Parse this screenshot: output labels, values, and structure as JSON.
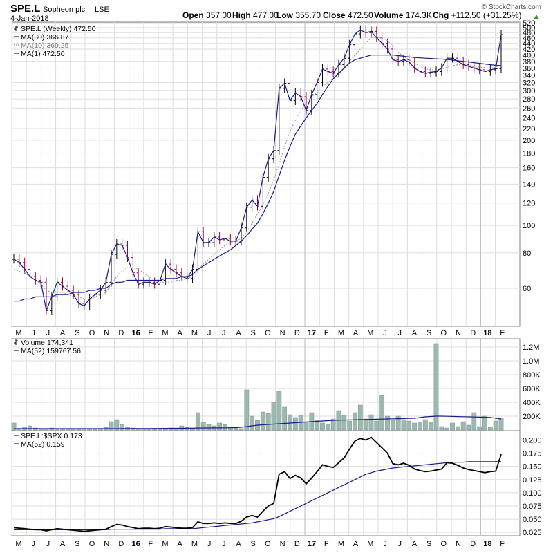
{
  "header": {
    "symbol": "SPE.L",
    "company": "Sopheon plc",
    "exchange": "LSE",
    "date": "4-Jan-2018",
    "brand": "© StockCharts.com",
    "quote": [
      {
        "label": "Open",
        "value": "357.00"
      },
      {
        "label": "High",
        "value": "477.00"
      },
      {
        "label": "Low",
        "value": "355.70"
      },
      {
        "label": "Close",
        "value": "472.50"
      },
      {
        "label": "Volume",
        "value": "174.3K"
      },
      {
        "label": "Chg",
        "value": "+112.50 (+31.25%)"
      }
    ],
    "chg_arrow": "up-triangle-icon",
    "up_color": "#339933"
  },
  "colors": {
    "price_bar": "#000000",
    "price_bar_down": "#990033",
    "ma30": "#1a1a8c",
    "ma10": "#9a9a9a",
    "volume_bar": "#9db8b0",
    "volume_bar_border": "#7a968e",
    "ratio_line": "#000000",
    "ratio_ma": "#1a1a8c",
    "grid": "#dddddd"
  },
  "price_panel": {
    "legend": [
      {
        "text": "SPE.L (Weekly) 472.50",
        "swatch": "bar"
      },
      {
        "text": "MA(30) 366.87",
        "swatch": "solid"
      },
      {
        "text": "MA(10) 369.25",
        "swatch": "dotted"
      },
      {
        "text": "MA(1) 472.50",
        "swatch": "solid"
      }
    ],
    "y_ticks": [
      "520",
      "500",
      "480",
      "460",
      "440",
      "420",
      "400",
      "380",
      "360",
      "340",
      "320",
      "300",
      "280",
      "260",
      "240",
      "220",
      "200",
      "180",
      "160",
      "140",
      "120",
      "100",
      "80",
      "60"
    ]
  },
  "volume_panel": {
    "legend": [
      {
        "text": "Volume 174,341",
        "swatch": "bar"
      },
      {
        "text": "MA(52) 159767.56",
        "swatch": "solid"
      }
    ],
    "y_ticks": [
      "1.2M",
      "1.0M",
      "800K",
      "600K",
      "400K",
      "200K"
    ]
  },
  "ratio_panel": {
    "legend": [
      {
        "text": "SPE.L:$SPX 0.173",
        "swatch": "solid"
      },
      {
        "text": "MA(52) 0.159",
        "swatch": "solid"
      }
    ],
    "y_ticks": [
      "0.200",
      "0.175",
      "0.150",
      "0.125",
      "0.100",
      "0.075",
      "0.050",
      "0.025"
    ]
  },
  "x_axis": {
    "labels": [
      {
        "text": "M",
        "bold": false
      },
      {
        "text": "J",
        "bold": false
      },
      {
        "text": "J",
        "bold": false
      },
      {
        "text": "A",
        "bold": false
      },
      {
        "text": "S",
        "bold": false
      },
      {
        "text": "O",
        "bold": false
      },
      {
        "text": "N",
        "bold": false
      },
      {
        "text": "D",
        "bold": false
      },
      {
        "text": "16",
        "bold": true
      },
      {
        "text": "F",
        "bold": false
      },
      {
        "text": "M",
        "bold": false
      },
      {
        "text": "A",
        "bold": false
      },
      {
        "text": "M",
        "bold": false
      },
      {
        "text": "J",
        "bold": false
      },
      {
        "text": "J",
        "bold": false
      },
      {
        "text": "A",
        "bold": false
      },
      {
        "text": "S",
        "bold": false
      },
      {
        "text": "O",
        "bold": false
      },
      {
        "text": "N",
        "bold": false
      },
      {
        "text": "D",
        "bold": false
      },
      {
        "text": "17",
        "bold": true
      },
      {
        "text": "F",
        "bold": false
      },
      {
        "text": "M",
        "bold": false
      },
      {
        "text": "A",
        "bold": false
      },
      {
        "text": "M",
        "bold": false
      },
      {
        "text": "J",
        "bold": false
      },
      {
        "text": "J",
        "bold": false
      },
      {
        "text": "A",
        "bold": false
      },
      {
        "text": "S",
        "bold": false
      },
      {
        "text": "O",
        "bold": false
      },
      {
        "text": "N",
        "bold": false
      },
      {
        "text": "D",
        "bold": false
      },
      {
        "text": "18",
        "bold": true
      },
      {
        "text": "F",
        "bold": false
      }
    ]
  },
  "chart_data": [
    {
      "type": "ohlc-line",
      "scale": "log",
      "x_label_month_index": [
        0,
        1,
        2,
        3,
        4,
        5,
        6,
        7,
        8,
        9,
        10,
        11,
        12,
        13,
        14,
        15,
        16,
        17,
        18,
        19,
        20,
        21,
        22,
        23,
        24,
        25,
        26,
        27,
        28,
        29,
        30,
        31,
        32,
        33
      ],
      "close": [
        76,
        74,
        70,
        66,
        64,
        63,
        50,
        56,
        63,
        61,
        59,
        57,
        53,
        52,
        55,
        57,
        59,
        63,
        79,
        86,
        85,
        77,
        68,
        62,
        63,
        63,
        62,
        64,
        73,
        70,
        68,
        66,
        65,
        70,
        95,
        87,
        87,
        91,
        89,
        90,
        88,
        88,
        98,
        116,
        123,
        117,
        148,
        172,
        184,
        305,
        318,
        276,
        294,
        285,
        255,
        290,
        320,
        357,
        350,
        345,
        370,
        390,
        435,
        475,
        490,
        480,
        485,
        460,
        440,
        420,
        385,
        380,
        385,
        378,
        360,
        350,
        345,
        348,
        350,
        360,
        390,
        390,
        380,
        370,
        365,
        360,
        355,
        350,
        355,
        358,
        472.5
      ],
      "ma30": [
        54,
        54,
        55,
        55,
        56,
        56,
        56,
        56,
        57,
        57,
        57,
        58,
        58,
        58,
        59,
        59,
        60,
        60,
        62,
        63,
        63,
        64,
        64,
        64,
        64,
        64,
        64,
        64,
        65,
        65,
        65,
        66,
        66,
        67,
        70,
        72,
        74,
        76,
        78,
        80,
        82,
        85,
        88,
        92,
        97,
        102,
        110,
        120,
        132,
        150,
        170,
        190,
        210,
        225,
        240,
        255,
        270,
        290,
        310,
        330,
        345,
        360,
        375,
        385,
        390,
        395,
        400,
        400,
        400,
        400,
        400,
        398,
        396,
        394,
        392,
        391,
        390,
        389,
        388,
        387,
        386,
        384,
        382,
        380,
        378,
        376,
        374,
        372,
        370,
        368,
        366.87
      ],
      "ma10": [
        70,
        69,
        68,
        66,
        64,
        62,
        59,
        58,
        58,
        58,
        57,
        56,
        56,
        55,
        55,
        56,
        57,
        58,
        62,
        66,
        69,
        71,
        71,
        70,
        68,
        66,
        64,
        63,
        63,
        63,
        64,
        64,
        65,
        66,
        70,
        73,
        76,
        79,
        82,
        85,
        87,
        88,
        90,
        95,
        102,
        110,
        118,
        130,
        145,
        165,
        190,
        215,
        235,
        255,
        270,
        285,
        295,
        310,
        320,
        330,
        340,
        360,
        380,
        400,
        420,
        440,
        460,
        465,
        460,
        450,
        430,
        410,
        395,
        385,
        375,
        365,
        358,
        355,
        355,
        357,
        362,
        367,
        370,
        370,
        368,
        365,
        363,
        361,
        360,
        362,
        369.25
      ]
    },
    {
      "type": "bar",
      "series_name": "Volume",
      "ylim": [
        0,
        1300000
      ],
      "values": [
        100000,
        20000,
        40000,
        60000,
        30000,
        20000,
        15000,
        30000,
        20000,
        10000,
        15000,
        20000,
        10000,
        15000,
        20000,
        10000,
        20000,
        40000,
        120000,
        150000,
        80000,
        40000,
        30000,
        20000,
        15000,
        20000,
        10000,
        15000,
        25000,
        30000,
        20000,
        60000,
        40000,
        30000,
        250000,
        110000,
        80000,
        60000,
        100000,
        80000,
        40000,
        30000,
        20000,
        580000,
        200000,
        140000,
        260000,
        240000,
        400000,
        560000,
        330000,
        220000,
        180000,
        210000,
        120000,
        250000,
        140000,
        100000,
        80000,
        160000,
        280000,
        210000,
        130000,
        250000,
        360000,
        160000,
        220000,
        130000,
        500000,
        200000,
        140000,
        200000,
        150000,
        130000,
        100000,
        110000,
        150000,
        110000,
        1250000,
        50000,
        30000,
        100000,
        50000,
        120000,
        70000,
        250000,
        50000,
        200000,
        40000,
        130000,
        174341
      ],
      "ma52": [
        20000,
        20000,
        20000,
        20000,
        20000,
        20000,
        20000,
        20000,
        20000,
        20000,
        20000,
        20000,
        20000,
        20000,
        20000,
        20000,
        20000,
        20000,
        20000,
        20000,
        22000,
        22000,
        22000,
        22000,
        22000,
        22000,
        23000,
        23000,
        24000,
        25000,
        25000,
        25000,
        26000,
        27000,
        29000,
        30000,
        30000,
        31000,
        31000,
        32000,
        33000,
        35000,
        40000,
        50000,
        60000,
        70000,
        75000,
        80000,
        85000,
        90000,
        95000,
        100000,
        105000,
        110000,
        115000,
        120000,
        125000,
        130000,
        135000,
        140000,
        142000,
        144000,
        146000,
        148000,
        150000,
        152000,
        154000,
        156000,
        158000,
        160000,
        162000,
        164000,
        166000,
        168000,
        170000,
        180000,
        190000,
        195000,
        200000,
        200000,
        198000,
        196000,
        194000,
        192000,
        190000,
        188000,
        186000,
        184000,
        182000,
        170000,
        159767.56
      ]
    },
    {
      "type": "line",
      "series_name": "SPE.L:$SPX",
      "ylim": [
        0.02,
        0.215
      ],
      "values": [
        0.034,
        0.033,
        0.032,
        0.031,
        0.03,
        0.03,
        0.028,
        0.03,
        0.032,
        0.031,
        0.03,
        0.029,
        0.028,
        0.027,
        0.028,
        0.029,
        0.03,
        0.031,
        0.036,
        0.04,
        0.039,
        0.036,
        0.034,
        0.032,
        0.033,
        0.033,
        0.032,
        0.033,
        0.036,
        0.035,
        0.034,
        0.033,
        0.033,
        0.034,
        0.045,
        0.042,
        0.042,
        0.043,
        0.042,
        0.043,
        0.042,
        0.042,
        0.046,
        0.054,
        0.057,
        0.054,
        0.065,
        0.075,
        0.08,
        0.135,
        0.14,
        0.127,
        0.133,
        0.128,
        0.117,
        0.128,
        0.14,
        0.153,
        0.15,
        0.148,
        0.157,
        0.166,
        0.183,
        0.198,
        0.203,
        0.2,
        0.205,
        0.195,
        0.185,
        0.175,
        0.155,
        0.153,
        0.156,
        0.152,
        0.145,
        0.142,
        0.14,
        0.141,
        0.143,
        0.145,
        0.157,
        0.156,
        0.152,
        0.147,
        0.144,
        0.142,
        0.14,
        0.138,
        0.14,
        0.141,
        0.173
      ],
      "ma52": [
        0.03,
        0.03,
        0.03,
        0.03,
        0.03,
        0.03,
        0.03,
        0.03,
        0.03,
        0.03,
        0.03,
        0.03,
        0.03,
        0.03,
        0.03,
        0.03,
        0.03,
        0.03,
        0.031,
        0.031,
        0.031,
        0.031,
        0.031,
        0.031,
        0.031,
        0.031,
        0.031,
        0.031,
        0.032,
        0.032,
        0.032,
        0.032,
        0.032,
        0.032,
        0.033,
        0.034,
        0.035,
        0.036,
        0.037,
        0.038,
        0.039,
        0.04,
        0.041,
        0.042,
        0.043,
        0.045,
        0.047,
        0.049,
        0.051,
        0.055,
        0.06,
        0.065,
        0.07,
        0.075,
        0.08,
        0.085,
        0.09,
        0.095,
        0.1,
        0.105,
        0.11,
        0.115,
        0.12,
        0.125,
        0.13,
        0.135,
        0.138,
        0.141,
        0.143,
        0.145,
        0.147,
        0.148,
        0.149,
        0.15,
        0.151,
        0.152,
        0.153,
        0.154,
        0.155,
        0.156,
        0.157,
        0.158,
        0.158,
        0.158,
        0.159,
        0.159,
        0.159,
        0.159,
        0.159,
        0.159,
        0.159
      ]
    }
  ]
}
